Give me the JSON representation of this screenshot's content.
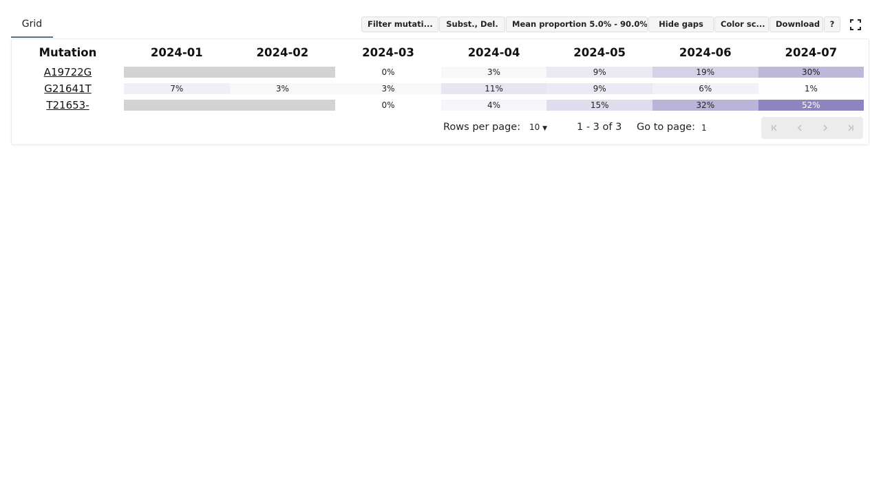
{
  "tabs": [
    {
      "label": "Grid"
    }
  ],
  "toolbar": {
    "filter_label": "Filter mutati...",
    "types_label": "Subst., Del.",
    "proportion_label": "Mean proportion 5.0% - 90.0%",
    "gaps_label": "Hide gaps",
    "color_label": "Color sc...",
    "download_label": "Download",
    "help_label": "?",
    "fullscreen_icon": "fullscreen-icon"
  },
  "table": {
    "header": "Mutation",
    "columns": [
      "2024-01",
      "2024-02",
      "2024-03",
      "2024-04",
      "2024-05",
      "2024-06",
      "2024-07"
    ],
    "rows": [
      {
        "mutation": "A19722G",
        "cells": [
          {
            "label": "",
            "value": null
          },
          {
            "label": "",
            "value": null
          },
          {
            "label": "0%",
            "value": 0
          },
          {
            "label": "3%",
            "value": 3
          },
          {
            "label": "9%",
            "value": 9
          },
          {
            "label": "19%",
            "value": 19
          },
          {
            "label": "30%",
            "value": 30
          }
        ]
      },
      {
        "mutation": "G21641T",
        "cells": [
          {
            "label": "7%",
            "value": 7
          },
          {
            "label": "3%",
            "value": 3
          },
          {
            "label": "3%",
            "value": 3
          },
          {
            "label": "11%",
            "value": 11
          },
          {
            "label": "9%",
            "value": 9
          },
          {
            "label": "6%",
            "value": 6
          },
          {
            "label": "1%",
            "value": 1
          }
        ]
      },
      {
        "mutation": "T21653-",
        "cells": [
          {
            "label": "",
            "value": null
          },
          {
            "label": "",
            "value": null
          },
          {
            "label": "0%",
            "value": 0
          },
          {
            "label": "4%",
            "value": 4
          },
          {
            "label": "15%",
            "value": 15
          },
          {
            "label": "32%",
            "value": 32
          },
          {
            "label": "52%",
            "value": 52
          }
        ]
      }
    ]
  },
  "pagination": {
    "rows_per_page_label": "Rows per page:",
    "rows_per_page_value": "10",
    "range_label": "1 - 3 of 3",
    "goto_label": "Go to page:",
    "goto_value": "1"
  },
  "colors": {
    "accent": "#5a6e88",
    "gap": "#d3d3d3",
    "scale_base": "#8d85c0"
  }
}
